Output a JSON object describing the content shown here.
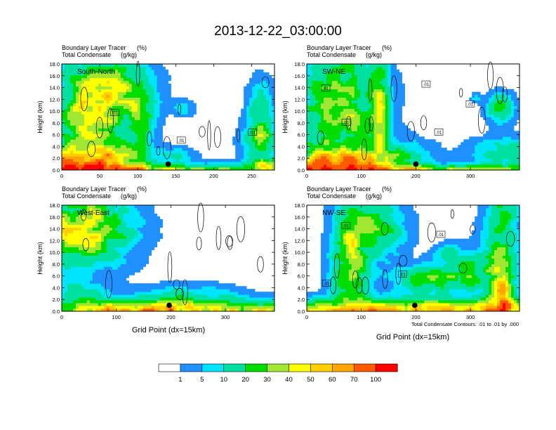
{
  "title": "2013-12-22_03:00:00",
  "panel_titles": {
    "tracer": "Boundary Layer Tracer",
    "tracer_units": "(%)",
    "condensate": "Total Condensate",
    "condensate_units": "(g/kg)"
  },
  "y_axis_label": "Height (km)",
  "x_axis_label": "Grid Point (dx=15km)",
  "contour_note": "Total Condensate Contours: .01 to .01 by .000",
  "colorbar": {
    "labels": [
      "1",
      "5",
      "10",
      "20",
      "30",
      "40",
      "50",
      "60",
      "70",
      "100"
    ],
    "colors": [
      "#ffffff",
      "#1e90ff",
      "#00e5ff",
      "#00e0a0",
      "#00dd00",
      "#a0e632",
      "#ffff00",
      "#ffd000",
      "#ffa500",
      "#ff5a00",
      "#ff0000"
    ]
  },
  "chart_data": [
    {
      "type": "heatmap",
      "cross_section": "South-North",
      "xlim": [
        0,
        280
      ],
      "ylim": [
        0,
        18
      ],
      "x_ticks": [
        "0",
        "50",
        "100",
        "150",
        "200",
        "250"
      ],
      "y_ticks": [
        "0.0",
        "2.0",
        "4.0",
        "6.0",
        "8.0",
        "10.0",
        "12.0",
        "14.0",
        "16.0",
        "18.0"
      ],
      "contour_labels": [
        ".01",
        ".01",
        ".01"
      ],
      "marker": {
        "x": 140,
        "y": 1.0
      }
    },
    {
      "type": "heatmap",
      "cross_section": "SW-NE",
      "xlim": [
        0,
        390
      ],
      "ylim": [
        0,
        18
      ],
      "x_ticks": [
        "0",
        "100",
        "200",
        "300"
      ],
      "y_ticks": [
        "0.0",
        "2.0",
        "4.0",
        "6.0",
        "8.0",
        "10.0",
        "12.0",
        "14.0",
        "16.0",
        "18.0"
      ],
      "contour_labels": [
        ".01",
        ".01",
        ".01",
        ".01",
        ".01"
      ],
      "marker": {
        "x": 200,
        "y": 1.0
      }
    },
    {
      "type": "heatmap",
      "cross_section": "West-East",
      "xlim": [
        0,
        390
      ],
      "ylim": [
        0,
        18
      ],
      "x_ticks": [
        "0",
        "100",
        "200",
        "300"
      ],
      "y_ticks": [
        "0.0",
        "2.0",
        "4.0",
        "6.0",
        "8.0",
        "10.0",
        "12.0",
        "14.0",
        "16.0",
        "18.0"
      ],
      "contour_labels": [],
      "marker": {
        "x": 197,
        "y": 1.0
      }
    },
    {
      "type": "heatmap",
      "cross_section": "NW-SE",
      "xlim": [
        0,
        390
      ],
      "ylim": [
        0,
        18
      ],
      "x_ticks": [
        "0",
        "100",
        "200",
        "300"
      ],
      "y_ticks": [
        "0.0",
        "2.0",
        "4.0",
        "6.0",
        "8.0",
        "10.0",
        "12.0",
        "14.0",
        "16.0",
        "18.0"
      ],
      "contour_labels": [
        ".01",
        ".01",
        ".01",
        ".01"
      ],
      "marker": {
        "x": 198,
        "y": 1.0
      }
    }
  ]
}
